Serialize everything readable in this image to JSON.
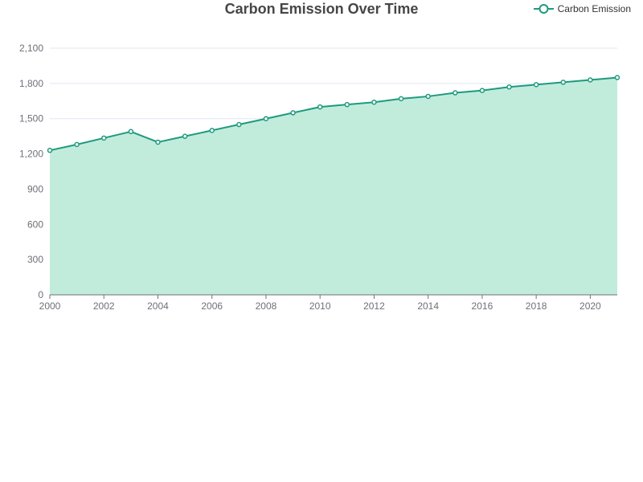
{
  "chart_data": {
    "type": "area",
    "title": "Carbon Emission Over Time",
    "xlabel": "",
    "ylabel": "",
    "x": [
      2000,
      2001,
      2002,
      2003,
      2004,
      2005,
      2006,
      2007,
      2008,
      2009,
      2010,
      2011,
      2012,
      2013,
      2014,
      2015,
      2016,
      2017,
      2018,
      2019,
      2020,
      2021
    ],
    "x_tick_labels": [
      "2000",
      "2002",
      "2004",
      "2006",
      "2008",
      "2010",
      "2012",
      "2014",
      "2016",
      "2018",
      "2020"
    ],
    "y_tick_labels": [
      "0",
      "300",
      "600",
      "900",
      "1,200",
      "1,500",
      "1,800",
      "2,100"
    ],
    "ylim": [
      0,
      2100
    ],
    "xlim": [
      2000,
      2021
    ],
    "grid": true,
    "legend_position": "top-right",
    "series": [
      {
        "name": "Carbon Emission",
        "color": "#1f9a7d",
        "fill": "#c1ecdc",
        "values": [
          1230,
          1280,
          1335,
          1390,
          1300,
          1350,
          1400,
          1450,
          1500,
          1550,
          1600,
          1620,
          1640,
          1670,
          1690,
          1720,
          1740,
          1770,
          1790,
          1810,
          1830,
          1850
        ]
      }
    ]
  }
}
